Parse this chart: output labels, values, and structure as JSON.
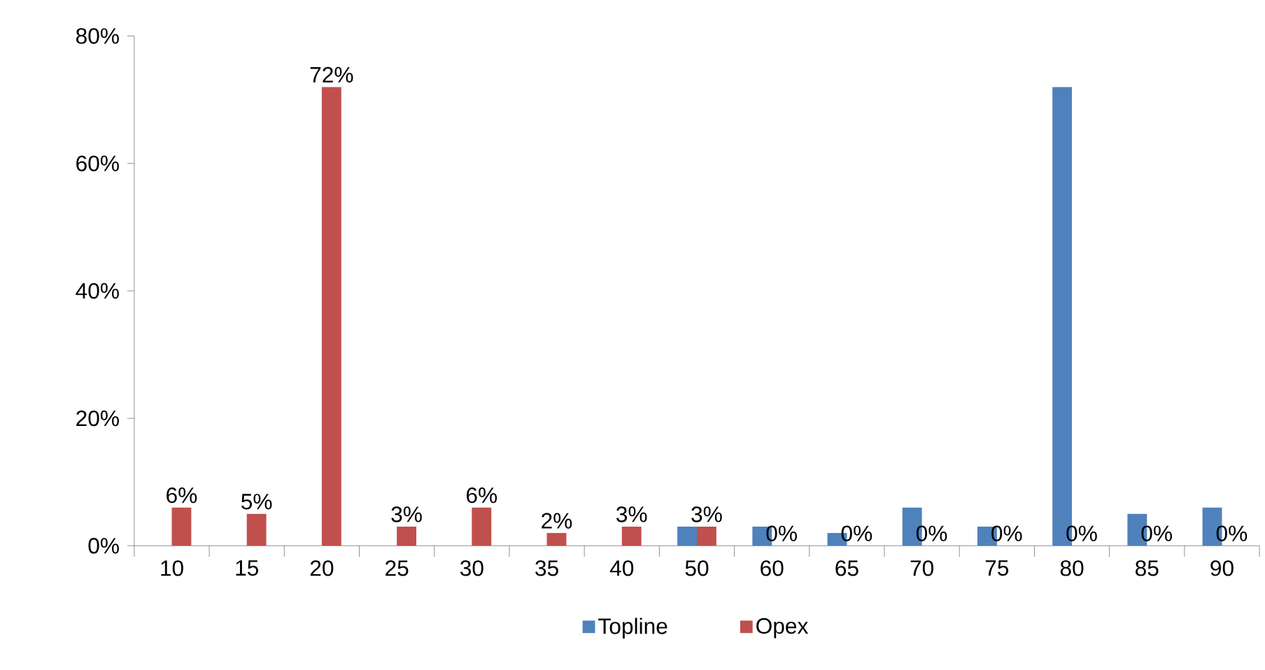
{
  "chart_data": {
    "type": "bar",
    "categories": [
      "10",
      "15",
      "20",
      "25",
      "30",
      "35",
      "40",
      "50",
      "60",
      "65",
      "70",
      "75",
      "80",
      "85",
      "90"
    ],
    "series": [
      {
        "name": "Topline",
        "color": "#4f81bd",
        "values": [
          0,
          0,
          0,
          0,
          0,
          0,
          0,
          3,
          3,
          2,
          6,
          3,
          72,
          5,
          6
        ]
      },
      {
        "name": "Opex",
        "color": "#c0504d",
        "values": [
          6,
          5,
          72,
          3,
          6,
          2,
          3,
          3,
          0,
          0,
          0,
          0,
          0,
          0,
          0
        ],
        "value_labels": [
          "6%",
          "5%",
          "72%",
          "3%",
          "6%",
          "2%",
          "3%",
          "3%",
          "0%",
          "0%",
          "0%",
          "0%",
          "0%",
          "0%",
          "0%"
        ]
      }
    ],
    "ylim": [
      0,
      80
    ],
    "yticks": [
      {
        "value": 0,
        "label": "0%"
      },
      {
        "value": 20,
        "label": "20%"
      },
      {
        "value": 40,
        "label": "40%"
      },
      {
        "value": 60,
        "label": "60%"
      },
      {
        "value": 80,
        "label": "80%"
      }
    ],
    "legend": "bottom",
    "grid": false
  }
}
